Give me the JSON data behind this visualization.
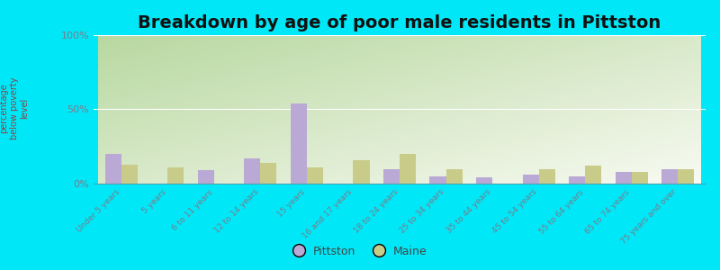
{
  "title": "Breakdown by age of poor male residents in Pittston",
  "ylabel": "percentage\nbelow poverty\nlevel",
  "categories": [
    "Under 5 years",
    "5 years",
    "6 to 11 years",
    "12 to 14 years",
    "15 years",
    "16 and 17 years",
    "18 to 24 years",
    "25 to 34 years",
    "35 to 44 years",
    "45 to 54 years",
    "55 to 64 years",
    "65 to 74 years",
    "75 years and over"
  ],
  "pittston_values": [
    20,
    0,
    9,
    17,
    54,
    0,
    10,
    5,
    4,
    6,
    5,
    8,
    10
  ],
  "maine_values": [
    13,
    11,
    0,
    14,
    11,
    16,
    20,
    10,
    0,
    10,
    12,
    8,
    10
  ],
  "pittston_color": "#b9a9d4",
  "maine_color": "#c8cc88",
  "grad_top_left": "#b8d8a0",
  "grad_bottom_right": "#f8faf2",
  "outer_bg": "#00e8f8",
  "ylim": [
    0,
    100
  ],
  "yticks": [
    0,
    50,
    100
  ],
  "ytick_labels": [
    "0%",
    "50%",
    "100%"
  ],
  "bar_width": 0.35,
  "title_fontsize": 14,
  "legend_labels": [
    "Pittston",
    "Maine"
  ],
  "tick_color": "#7a7a8a",
  "ylabel_color": "#884444"
}
